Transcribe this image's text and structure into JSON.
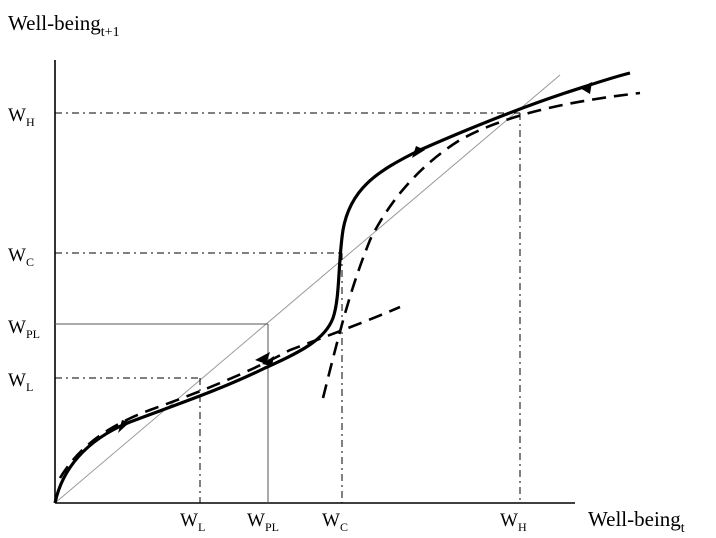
{
  "axes": {
    "y_title": "Well-being",
    "y_title_sub": "t+1",
    "x_title": "Well-being",
    "x_title_sub": "t"
  },
  "y_ticks": [
    {
      "key": "WH",
      "main": "W",
      "sub": "H"
    },
    {
      "key": "WC",
      "main": "W",
      "sub": "C"
    },
    {
      "key": "WPL",
      "main": "W",
      "sub": "PL"
    },
    {
      "key": "WL",
      "main": "W",
      "sub": "L"
    }
  ],
  "x_ticks": [
    {
      "key": "WL",
      "main": "W",
      "sub": "L"
    },
    {
      "key": "WPL",
      "main": "W",
      "sub": "PL"
    },
    {
      "key": "WC",
      "main": "W",
      "sub": "C"
    },
    {
      "key": "WH",
      "main": "W",
      "sub": "H"
    }
  ],
  "style": {
    "ink": "#000000",
    "diagonal": "#9a9a9a",
    "box": "#555555"
  }
}
